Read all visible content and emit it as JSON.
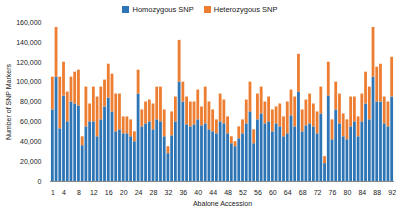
{
  "chart_data": {
    "type": "bar",
    "stacked": true,
    "x_label": "Abalone Accession",
    "y_label": "Number of SNP Markers",
    "legend": "top",
    "categories": [
      "1",
      null,
      null,
      "4",
      null,
      null,
      null,
      "8",
      null,
      null,
      null,
      "12",
      null,
      null,
      null,
      "16",
      null,
      null,
      null,
      "20",
      null,
      null,
      null,
      "24",
      null,
      null,
      null,
      "28",
      null,
      null,
      null,
      "32",
      null,
      null,
      null,
      "36",
      null,
      null,
      null,
      "40",
      null,
      null,
      null,
      "44",
      null,
      null,
      null,
      "48",
      null,
      null,
      null,
      "52",
      null,
      null,
      null,
      "56",
      null,
      null,
      null,
      "60",
      null,
      null,
      null,
      "64",
      null,
      null,
      null,
      "68",
      null,
      null,
      null,
      "72",
      null,
      null,
      null,
      "76",
      null,
      null,
      null,
      "80",
      null,
      null,
      null,
      "84",
      null,
      null,
      null,
      "88",
      null,
      null,
      null,
      "92"
    ],
    "series": [
      {
        "name": "Homozygous SNP",
        "color": "#2e75b6",
        "values": [
          72000,
          105000,
          53000,
          86000,
          60000,
          80000,
          78000,
          76000,
          36000,
          55000,
          60000,
          60000,
          45000,
          62000,
          75000,
          84000,
          70000,
          50000,
          52000,
          48000,
          48000,
          45000,
          40000,
          88000,
          55000,
          58000,
          60000,
          52000,
          62000,
          60000,
          45000,
          28000,
          46000,
          60000,
          100000,
          80000,
          57000,
          55000,
          57000,
          62000,
          56000,
          58000,
          52000,
          50000,
          48000,
          60000,
          58000,
          48000,
          38000,
          35000,
          43000,
          48000,
          58000,
          70000,
          38000,
          62000,
          68000,
          58000,
          60000,
          50000,
          58000,
          55000,
          45000,
          48000,
          66000,
          55000,
          90000,
          50000,
          56000,
          58000,
          55000,
          48000,
          68000,
          18000,
          86000,
          42000,
          72000,
          58000,
          45000,
          42000,
          55000,
          60000,
          45000,
          60000,
          78000,
          62000,
          105000,
          80000,
          80000,
          58000,
          55000,
          85000
        ]
      },
      {
        "name": "Heterozygous SNP",
        "color": "#ed7d31",
        "values": [
          33000,
          50000,
          52000,
          34000,
          30000,
          25000,
          32000,
          36000,
          9000,
          40000,
          18000,
          35000,
          40000,
          33000,
          27000,
          34000,
          38000,
          38000,
          36000,
          17000,
          17000,
          17000,
          10000,
          24000,
          17000,
          22000,
          22000,
          26000,
          33000,
          35000,
          27000,
          7000,
          24000,
          25000,
          42000,
          20000,
          28000,
          25000,
          23000,
          30000,
          19000,
          37000,
          28000,
          22000,
          14000,
          28000,
          24000,
          17000,
          7000,
          5000,
          12000,
          14000,
          24000,
          30000,
          14000,
          26000,
          27000,
          22000,
          25000,
          22000,
          17000,
          23000,
          20000,
          32000,
          26000,
          30000,
          38000,
          22000,
          26000,
          30000,
          23000,
          22000,
          27000,
          7000,
          34000,
          20000,
          28000,
          30000,
          23000,
          20000,
          30000,
          25000,
          20000,
          28000,
          32000,
          33000,
          50000,
          35000,
          38000,
          27000,
          25000,
          40000
        ]
      }
    ],
    "ylim": [
      0,
      160000
    ],
    "yticks": [
      0,
      {
        "value": 20000,
        "label": "20,000"
      },
      {
        "value": 40000,
        "label": "40,000"
      },
      {
        "value": 60000,
        "label": "60,000"
      },
      {
        "value": 80000,
        "label": "80,000"
      },
      {
        "value": 100000,
        "label": "100,000"
      },
      {
        "value": 120000,
        "label": "120,000"
      },
      {
        "value": 140000,
        "label": "140,000"
      },
      {
        "value": 160000,
        "label": "160,000"
      }
    ]
  }
}
